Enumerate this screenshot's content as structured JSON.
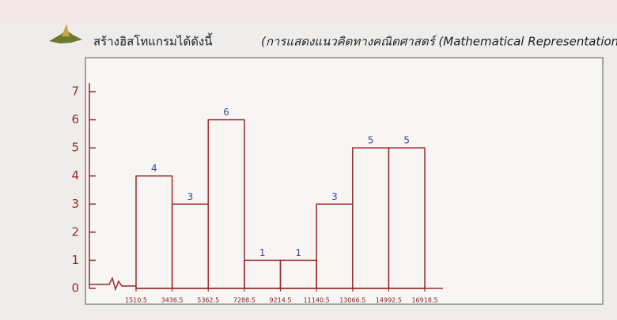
{
  "chart_data": {
    "type": "histogram",
    "title": "สร้างฮิสโทแกรมได้ดังนี้",
    "subtitle": "(การแสดงแนวคิดทางคณิตศาสตร์ (Mathematical Representations))",
    "bins": [
      1510.5,
      3436.5,
      5362.5,
      7288.5,
      9214.5,
      11140.5,
      13066.5,
      14992.5,
      16918.5
    ],
    "values": [
      4,
      3,
      6,
      1,
      1,
      3,
      5,
      5
    ],
    "color": "#9b2a2a",
    "xlim": [
      1510.5,
      16918.5
    ],
    "xticks": [
      1510.5,
      3436.5,
      5362.5,
      7288.5,
      9214.5,
      11140.5,
      13066.5,
      14992.5,
      16918.5
    ],
    "ylim": [
      0,
      7
    ],
    "yticks": [
      0,
      1,
      2,
      3,
      4,
      5,
      6,
      7
    ]
  }
}
